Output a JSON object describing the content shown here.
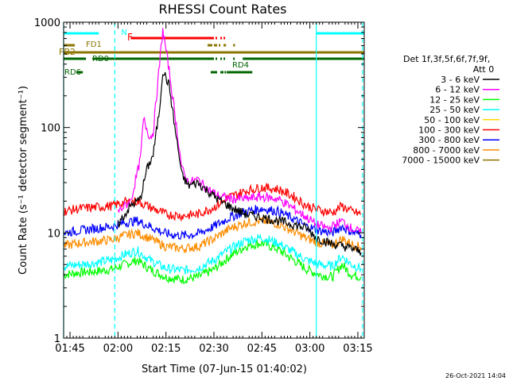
{
  "chart_data": {
    "type": "line",
    "title": "RHESSI Count Rates",
    "xlabel": "Start Time (07-Jun-15 01:40:02)",
    "ylabel": "Count Rate (s⁻¹ detector segment⁻¹)",
    "y_scale": "log",
    "ylim": [
      1,
      1000
    ],
    "y_ticks": [
      {
        "v": 1,
        "label": "1"
      },
      {
        "v": 10,
        "label": "10"
      },
      {
        "v": 100,
        "label": "100"
      },
      {
        "v": 1000,
        "label": "1000"
      }
    ],
    "xlim_min": [
      103,
      197
    ],
    "x_ticks": [
      {
        "v": 105,
        "label": "01:45"
      },
      {
        "v": 120,
        "label": "02:00"
      },
      {
        "v": 135,
        "label": "02:15"
      },
      {
        "v": 150,
        "label": "02:30"
      },
      {
        "v": 165,
        "label": "02:45"
      },
      {
        "v": 180,
        "label": "03:00"
      },
      {
        "v": 195,
        "label": "03:15"
      }
    ],
    "legend": {
      "header": [
        "Det 1f,3f,5f,6f,7f,9f,",
        "Att 0"
      ],
      "position": "right"
    },
    "series": [
      {
        "name": "3 - 6 keV",
        "color": "#000000",
        "points": [
          [
            120,
            12
          ],
          [
            124,
            18
          ],
          [
            127,
            21
          ],
          [
            129,
            40
          ],
          [
            131,
            55
          ],
          [
            133,
            150
          ],
          [
            134,
            350
          ],
          [
            136,
            250
          ],
          [
            138,
            90
          ],
          [
            140,
            35
          ],
          [
            142,
            28
          ],
          [
            145,
            30
          ],
          [
            148,
            25
          ],
          [
            152,
            20
          ],
          [
            156,
            17
          ],
          [
            160,
            15
          ],
          [
            165,
            14
          ],
          [
            170,
            13
          ],
          [
            175,
            12
          ],
          [
            179,
            11
          ],
          [
            182,
            9
          ],
          [
            186,
            8
          ],
          [
            190,
            7.5
          ],
          [
            194,
            7
          ],
          [
            196,
            6.5
          ]
        ]
      },
      {
        "name": "6 - 12 keV",
        "color": "#ff00ff",
        "points": [
          [
            120,
            16
          ],
          [
            124,
            20
          ],
          [
            127,
            50
          ],
          [
            128,
            120
          ],
          [
            130,
            80
          ],
          [
            131,
            90
          ],
          [
            133,
            400
          ],
          [
            134,
            850
          ],
          [
            136,
            350
          ],
          [
            138,
            120
          ],
          [
            140,
            40
          ],
          [
            142,
            30
          ],
          [
            145,
            32
          ],
          [
            148,
            26
          ],
          [
            152,
            22
          ],
          [
            156,
            21
          ],
          [
            160,
            21
          ],
          [
            165,
            22
          ],
          [
            170,
            21
          ],
          [
            175,
            17
          ],
          [
            179,
            14
          ],
          [
            182,
            12
          ],
          [
            186,
            11
          ],
          [
            190,
            13
          ],
          [
            193,
            11
          ],
          [
            196,
            10
          ]
        ]
      },
      {
        "name": "12 - 25 keV",
        "color": "#00ff00",
        "points": [
          [
            103,
            4
          ],
          [
            108,
            4.2
          ],
          [
            113,
            4.3
          ],
          [
            118,
            4.5
          ],
          [
            122,
            5
          ],
          [
            126,
            5.5
          ],
          [
            130,
            4.5
          ],
          [
            135,
            3.8
          ],
          [
            140,
            3.6
          ],
          [
            145,
            3.8
          ],
          [
            150,
            4.5
          ],
          [
            155,
            6
          ],
          [
            160,
            7.5
          ],
          [
            165,
            8
          ],
          [
            170,
            7
          ],
          [
            175,
            5.5
          ],
          [
            179,
            4.5
          ],
          [
            183,
            4
          ],
          [
            187,
            3.8
          ],
          [
            190,
            5
          ],
          [
            193,
            4
          ],
          [
            196,
            3.8
          ]
        ]
      },
      {
        "name": "25 - 50 keV",
        "color": "#00ffff",
        "points": [
          [
            103,
            4.8
          ],
          [
            108,
            5
          ],
          [
            113,
            5.2
          ],
          [
            118,
            5.5
          ],
          [
            122,
            6.2
          ],
          [
            126,
            6.8
          ],
          [
            130,
            5.5
          ],
          [
            135,
            4.6
          ],
          [
            140,
            4.4
          ],
          [
            145,
            4.6
          ],
          [
            150,
            5.5
          ],
          [
            155,
            7
          ],
          [
            160,
            8.5
          ],
          [
            165,
            9
          ],
          [
            170,
            8
          ],
          [
            175,
            6.5
          ],
          [
            179,
            5.5
          ],
          [
            183,
            5
          ],
          [
            187,
            4.8
          ],
          [
            190,
            6
          ],
          [
            193,
            5
          ],
          [
            196,
            4.6
          ]
        ]
      },
      {
        "name": "50 - 100 keV",
        "color": "#ffd700",
        "points": []
      },
      {
        "name": "100 - 300 keV",
        "color": "#ff0000",
        "points": [
          [
            103,
            16
          ],
          [
            108,
            17
          ],
          [
            113,
            17.5
          ],
          [
            118,
            18
          ],
          [
            122,
            19.5
          ],
          [
            126,
            20
          ],
          [
            130,
            17.5
          ],
          [
            135,
            15
          ],
          [
            140,
            14.5
          ],
          [
            145,
            15
          ],
          [
            150,
            17.5
          ],
          [
            155,
            22
          ],
          [
            160,
            25
          ],
          [
            165,
            27
          ],
          [
            170,
            26
          ],
          [
            175,
            22
          ],
          [
            179,
            18
          ],
          [
            183,
            16.5
          ],
          [
            187,
            15.5
          ],
          [
            190,
            18
          ],
          [
            193,
            16
          ],
          [
            196,
            15
          ]
        ]
      },
      {
        "name": "300 - 800 keV",
        "color": "#0000ff",
        "points": [
          [
            103,
            10
          ],
          [
            108,
            10.5
          ],
          [
            113,
            11
          ],
          [
            118,
            11.5
          ],
          [
            122,
            12.5
          ],
          [
            126,
            13
          ],
          [
            130,
            11.5
          ],
          [
            135,
            9.8
          ],
          [
            140,
            9.4
          ],
          [
            145,
            9.8
          ],
          [
            150,
            11.5
          ],
          [
            155,
            14
          ],
          [
            160,
            16
          ],
          [
            165,
            17
          ],
          [
            170,
            16
          ],
          [
            175,
            13.5
          ],
          [
            179,
            11.5
          ],
          [
            183,
            10.5
          ],
          [
            187,
            10
          ],
          [
            190,
            11.5
          ],
          [
            193,
            10.2
          ],
          [
            196,
            9.6
          ]
        ]
      },
      {
        "name": "800 - 7000 keV",
        "color": "#ff8c00",
        "points": [
          [
            103,
            7.5
          ],
          [
            108,
            8
          ],
          [
            113,
            8.3
          ],
          [
            118,
            8.6
          ],
          [
            122,
            9.4
          ],
          [
            126,
            10
          ],
          [
            130,
            8.8
          ],
          [
            135,
            7.4
          ],
          [
            140,
            7.1
          ],
          [
            145,
            7.4
          ],
          [
            150,
            8.8
          ],
          [
            155,
            11
          ],
          [
            160,
            12.5
          ],
          [
            165,
            13
          ],
          [
            170,
            12.2
          ],
          [
            175,
            10.3
          ],
          [
            179,
            8.8
          ],
          [
            183,
            8
          ],
          [
            187,
            7.6
          ],
          [
            190,
            8.8
          ],
          [
            193,
            7.8
          ],
          [
            196,
            7.3
          ]
        ]
      },
      {
        "name": "7000 - 15000 keV",
        "color": "#8b7500",
        "points": []
      }
    ],
    "flags": [
      {
        "label": "N",
        "color": "#00ffff",
        "segments": [
          [
            103,
            114
          ],
          [
            182,
            197
          ]
        ],
        "y_level": 1
      }
    ],
    "flag_labels": [
      {
        "label": "F",
        "color": "#ff0000",
        "x": 123,
        "segments": [
          [
            124,
            150
          ],
          [
            150.5,
            151
          ],
          [
            152,
            152.5
          ],
          [
            153,
            153.5
          ]
        ]
      },
      {
        "label": "FD1",
        "color": "#8b7500",
        "x": 108,
        "segments": [
          [
            103,
            106.5
          ],
          [
            148,
            149.5
          ],
          [
            150,
            151
          ],
          [
            151.5,
            152
          ],
          [
            153,
            153.8
          ],
          [
            156,
            156.6
          ]
        ]
      },
      {
        "label": "FB2",
        "color": "#8b7500",
        "x": 103,
        "segments": [
          [
            103,
            197
          ]
        ]
      },
      {
        "label": "RD0",
        "color": "#006400",
        "x": 112,
        "segments": [
          [
            103,
            110
          ],
          [
            112,
            150
          ],
          [
            150.5,
            151
          ],
          [
            152,
            152.5
          ],
          [
            153,
            153.5
          ],
          [
            156,
            156.5
          ],
          [
            159,
            197
          ]
        ]
      },
      {
        "label": "RD4",
        "color": "#006400",
        "x": 151,
        "segments": [
          [
            149,
            151
          ],
          [
            152,
            153
          ],
          [
            153.3,
            153.8
          ],
          [
            154,
            162
          ]
        ]
      },
      {
        "label": "RD6",
        "color": "#006400",
        "x": 104,
        "segments": [
          [
            107,
            109
          ]
        ]
      }
    ],
    "vlines": [
      {
        "x": 103,
        "style": "solid"
      },
      {
        "x": 119,
        "style": "dashed"
      },
      {
        "x": 182,
        "style": "solid"
      },
      {
        "x": 196.5,
        "style": "dashed"
      }
    ],
    "timestamp": "26-Oct-2021 14:04"
  }
}
